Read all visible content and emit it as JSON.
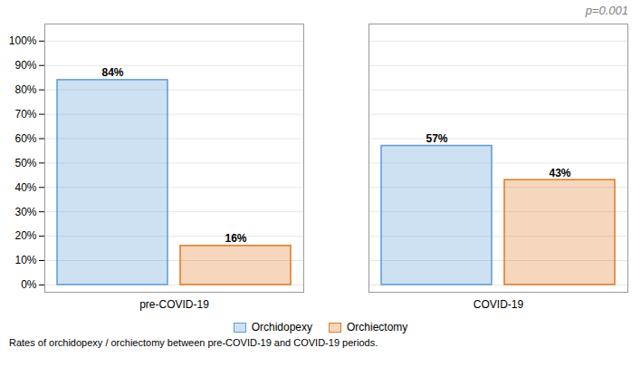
{
  "chart_data": {
    "type": "bar",
    "categories": [
      "pre-COVID-19",
      "COVID-19"
    ],
    "series": [
      {
        "name": "Orchidopexy",
        "color": "#5b9bd5",
        "values": [
          84,
          57
        ],
        "value_labels": [
          "84%",
          "57%"
        ]
      },
      {
        "name": "Orchiectomy",
        "color": "#e07820",
        "values": [
          16,
          43
        ],
        "value_labels": [
          "16%",
          "43%"
        ]
      }
    ],
    "ylim": [
      -3,
      107
    ],
    "yticks": [
      {
        "value": 0,
        "label": "0%"
      },
      {
        "value": 10,
        "label": "10%"
      },
      {
        "value": 20,
        "label": "20%"
      },
      {
        "value": 30,
        "label": "30%"
      },
      {
        "value": 40,
        "label": "40%"
      },
      {
        "value": 50,
        "label": "50%"
      },
      {
        "value": 60,
        "label": "60%"
      },
      {
        "value": 70,
        "label": "70%"
      },
      {
        "value": 80,
        "label": "80%"
      },
      {
        "value": 90,
        "label": "90%"
      },
      {
        "value": 100,
        "label": "100%"
      }
    ],
    "grid": true,
    "legend": "bottom",
    "data_labels": true,
    "annotations": [
      "p=0.001"
    ],
    "caption": "Rates of orchidopexy / orchiectomy between pre-COVID-19 and COVID-19 periods."
  }
}
